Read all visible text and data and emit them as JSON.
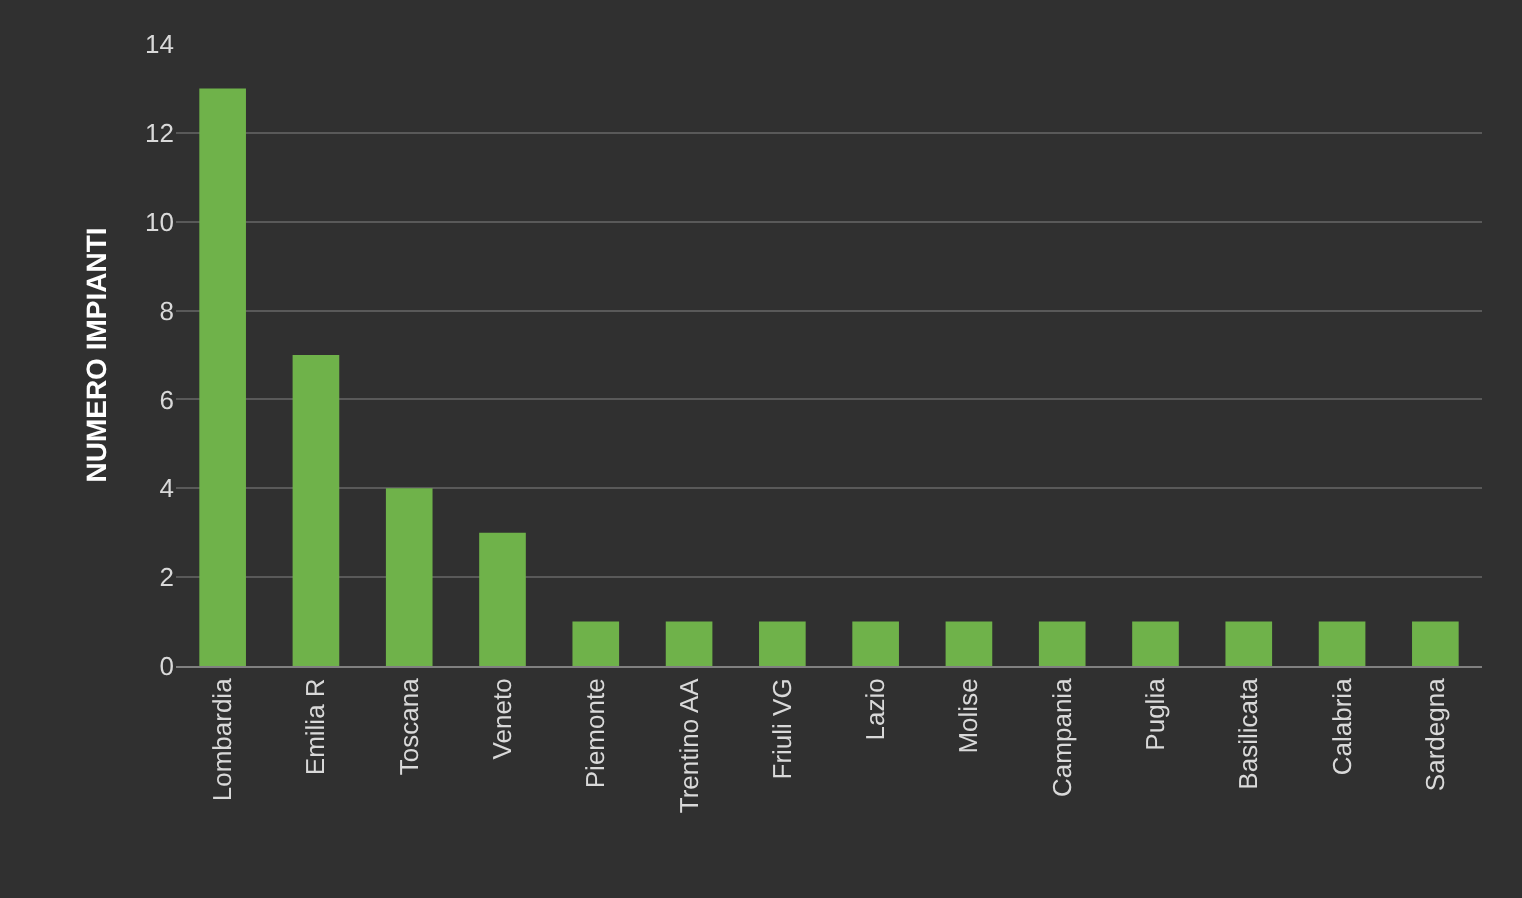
{
  "chart_data": {
    "type": "bar",
    "ylabel": "NUMERO IMPIANTI",
    "categories": [
      "Lombardia",
      "Emilia R",
      "Toscana",
      "Veneto",
      "Piemonte",
      "Trentino AA",
      "Friuli VG",
      "Lazio",
      "Molise",
      "Campania",
      "Puglia",
      "Basilicata",
      "Calabria",
      "Sardegna"
    ],
    "values": [
      13,
      7,
      4,
      3,
      1,
      1,
      1,
      1,
      1,
      1,
      1,
      1,
      1,
      1
    ],
    "color": "#6fb24a",
    "ylim": [
      0,
      14
    ],
    "yticks": [
      0,
      2,
      4,
      6,
      8,
      10,
      12,
      14
    ],
    "grid": "y"
  }
}
